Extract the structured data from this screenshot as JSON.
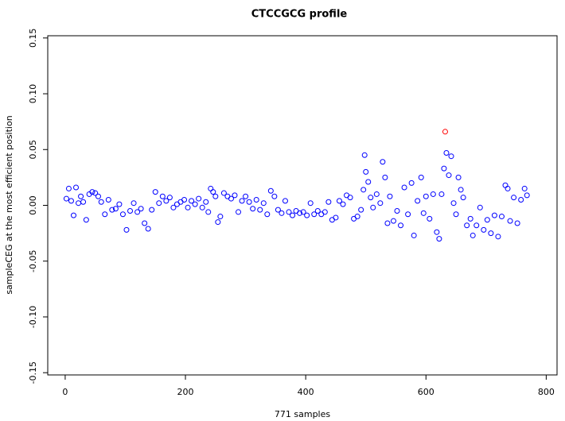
{
  "chart_data": {
    "type": "scatter",
    "title": "CTCCGCG profile",
    "x_label": "771 samples",
    "y_label": "sampleCEG at the most efficient position",
    "xlim": [
      -29,
      818
    ],
    "ylim": [
      -0.152,
      0.152
    ],
    "xticks": [
      0,
      200,
      400,
      600,
      800
    ],
    "yticks": [
      -0.15,
      {
        "value": -0.1,
        "label": "-0.10"
      },
      -0.05,
      {
        "value": 0,
        "label": "0.00"
      },
      0.05,
      {
        "value": 0.1,
        "label": "0.10"
      },
      0.15
    ],
    "series": [
      {
        "color": "#0000ff",
        "x": [
          2,
          6,
          10,
          14,
          18,
          22,
          26,
          30,
          35,
          40,
          45,
          50,
          55,
          60,
          66,
          72,
          78,
          84,
          90,
          96,
          102,
          108,
          114,
          120,
          126,
          132,
          138,
          144,
          150,
          156,
          162,
          168,
          174,
          180,
          186,
          192,
          198,
          204,
          210,
          216,
          222,
          228,
          234,
          238,
          242,
          246,
          250,
          254,
          258,
          264,
          270,
          276,
          282,
          288,
          294,
          300,
          306,
          312,
          318,
          324,
          330,
          336,
          342,
          348,
          354,
          360,
          366,
          372,
          378,
          384,
          390,
          396,
          402,
          408,
          414,
          420,
          426,
          432,
          438,
          444,
          450,
          456,
          462,
          468,
          474,
          480,
          486,
          492,
          496,
          498,
          500,
          504,
          508,
          512,
          518,
          524,
          528,
          532,
          536,
          540,
          546,
          552,
          558,
          564,
          570,
          576,
          580,
          586,
          592,
          596,
          600,
          606,
          612,
          618,
          622,
          626,
          630,
          634,
          638,
          642,
          646,
          650,
          654,
          658,
          662,
          668,
          674,
          678,
          684,
          690,
          696,
          702,
          708,
          714,
          720,
          726,
          732,
          736,
          740,
          746,
          752,
          758,
          764,
          768
        ],
        "values": [
          0.006,
          0.015,
          0.004,
          -0.009,
          0.016,
          0.002,
          0.008,
          0.003,
          -0.013,
          0.01,
          0.012,
          0.011,
          0.008,
          0.003,
          -0.008,
          0.005,
          -0.004,
          -0.003,
          0.001,
          -0.008,
          -0.022,
          -0.005,
          0.002,
          -0.006,
          -0.003,
          -0.016,
          -0.021,
          -0.004,
          0.012,
          0.002,
          0.008,
          0.004,
          0.007,
          -0.002,
          0.001,
          0.003,
          0.005,
          -0.002,
          0.004,
          0.001,
          0.006,
          -0.002,
          0.003,
          -0.006,
          0.015,
          0.012,
          0.008,
          -0.015,
          -0.01,
          0.011,
          0.008,
          0.006,
          0.009,
          -0.006,
          0.004,
          0.008,
          0.003,
          -0.003,
          0.005,
          -0.004,
          0.002,
          -0.008,
          0.013,
          0.008,
          -0.004,
          -0.007,
          0.004,
          -0.006,
          -0.009,
          -0.005,
          -0.007,
          -0.006,
          -0.009,
          0.002,
          -0.008,
          -0.005,
          -0.008,
          -0.006,
          0.003,
          -0.013,
          -0.011,
          0.004,
          0.001,
          0.009,
          0.007,
          -0.012,
          -0.01,
          -0.004,
          0.014,
          0.045,
          0.03,
          0.021,
          0.007,
          -0.002,
          0.01,
          0.002,
          0.039,
          0.025,
          -0.016,
          0.008,
          -0.014,
          -0.005,
          -0.018,
          0.016,
          -0.008,
          0.02,
          -0.027,
          0.004,
          0.025,
          -0.007,
          0.008,
          -0.012,
          0.01,
          -0.024,
          -0.03,
          0.01,
          0.033,
          0.047,
          0.027,
          0.044,
          0.002,
          -0.008,
          0.025,
          0.014,
          0.007,
          -0.018,
          -0.012,
          -0.027,
          -0.018,
          -0.002,
          -0.022,
          -0.013,
          -0.025,
          -0.009,
          -0.028,
          -0.01,
          0.018,
          0.015,
          -0.014,
          0.007,
          -0.016,
          0.005,
          0.015,
          0.009
        ]
      },
      {
        "color": "#ff0000",
        "x": [
          632
        ],
        "values": [
          0.066
        ]
      }
    ]
  }
}
